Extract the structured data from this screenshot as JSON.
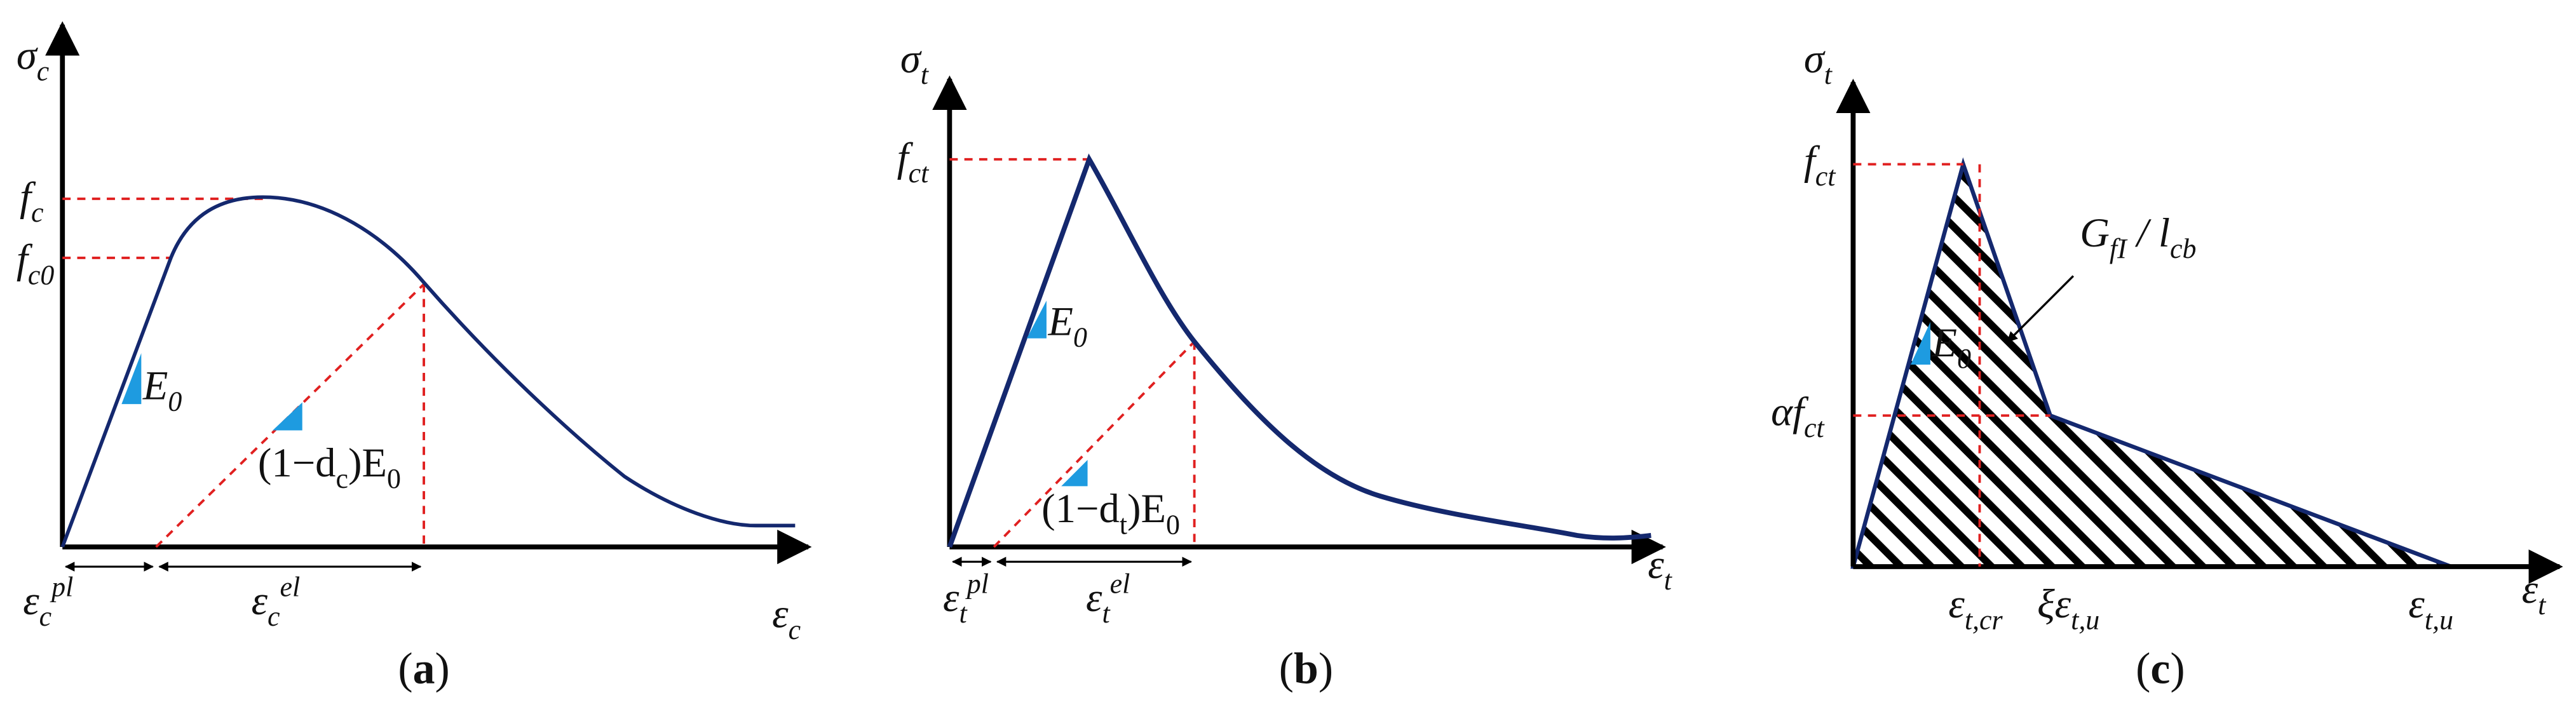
{
  "panels": [
    {
      "caption": [
        "(",
        "a",
        ")"
      ],
      "y_axis": [
        "σ",
        "c"
      ],
      "x_axis": [
        "ε",
        "c"
      ],
      "fc": [
        "f",
        "c"
      ],
      "fc0": [
        "f",
        "c0"
      ],
      "e0": [
        "E",
        "0"
      ],
      "damaged": [
        "(1−d",
        "c",
        ")E",
        "0"
      ],
      "eps_pl": [
        "ε",
        "c",
        "pl"
      ],
      "eps_el": [
        "ε",
        "c",
        "el"
      ]
    },
    {
      "caption": [
        "(",
        "b",
        ")"
      ],
      "y_axis": [
        "σ",
        "t"
      ],
      "x_axis": [
        "ε",
        "t"
      ],
      "fct": [
        "f",
        "ct"
      ],
      "e0": [
        "E",
        "0"
      ],
      "damaged": [
        "(1−d",
        "t",
        ")E",
        "0"
      ],
      "eps_pl": [
        "ε",
        "t",
        "pl"
      ],
      "eps_el": [
        "ε",
        "t",
        "el"
      ]
    },
    {
      "caption": [
        "(",
        "c",
        ")"
      ],
      "y_axis": [
        "σ",
        "t"
      ],
      "x_axis": [
        "ε",
        "t"
      ],
      "fct": [
        "f",
        "ct"
      ],
      "alpha_fct": [
        "αf",
        "ct"
      ],
      "e0": [
        "E",
        "0"
      ],
      "fracture": [
        "G",
        "fI",
        " / l",
        "cb"
      ],
      "eps_cr": [
        "ε",
        "t,cr"
      ],
      "xi_eps": [
        "ξε",
        "t,u"
      ],
      "eps_u": [
        "ε",
        "t,u"
      ]
    }
  ]
}
